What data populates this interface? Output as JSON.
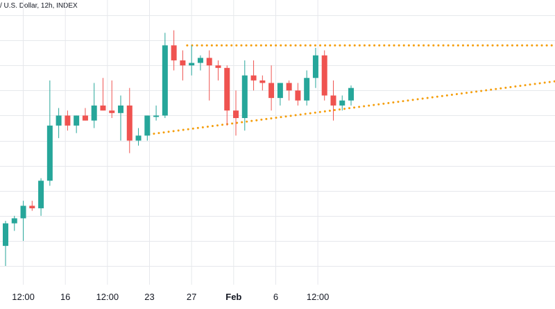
{
  "legend": {
    "text": "/ U.S. Dollar, 12h, INDEX"
  },
  "chart_data": {
    "type": "candlestick",
    "x_tick_labels": [
      {
        "label": "12:00",
        "slot": 2.0,
        "bold": false
      },
      {
        "label": "16",
        "slot": 6.75,
        "bold": false
      },
      {
        "label": "12:00",
        "slot": 11.5,
        "bold": false
      },
      {
        "label": "23",
        "slot": 16.25,
        "bold": false
      },
      {
        "label": "27",
        "slot": 21.0,
        "bold": false
      },
      {
        "label": "Feb",
        "slot": 25.75,
        "bold": true
      },
      {
        "label": "6",
        "slot": 30.5,
        "bold": false
      },
      {
        "label": "12:00",
        "slot": 35.25,
        "bold": false
      }
    ],
    "ylim": [
      0,
      100
    ],
    "grid": true,
    "candles": [
      {
        "open": 8,
        "high": 18,
        "low": 0,
        "close": 17
      },
      {
        "open": 17,
        "high": 20,
        "low": 14,
        "close": 19
      },
      {
        "open": 19,
        "high": 26,
        "low": 10,
        "close": 24
      },
      {
        "open": 24,
        "high": 26,
        "low": 22,
        "close": 23
      },
      {
        "open": 23,
        "high": 35,
        "low": 20,
        "close": 34
      },
      {
        "open": 34,
        "high": 74,
        "low": 32,
        "close": 56
      },
      {
        "open": 56,
        "high": 63,
        "low": 51,
        "close": 60
      },
      {
        "open": 60,
        "high": 62,
        "low": 54,
        "close": 56
      },
      {
        "open": 56,
        "high": 60,
        "low": 53,
        "close": 60
      },
      {
        "open": 60,
        "high": 63,
        "low": 58,
        "close": 58
      },
      {
        "open": 58,
        "high": 73,
        "low": 55,
        "close": 64
      },
      {
        "open": 64,
        "high": 75,
        "low": 62,
        "close": 62
      },
      {
        "open": 62,
        "high": 74,
        "low": 59,
        "close": 61
      },
      {
        "open": 61,
        "high": 68,
        "low": 50,
        "close": 64
      },
      {
        "open": 64,
        "high": 71,
        "low": 45,
        "close": 50
      },
      {
        "open": 50,
        "high": 55,
        "low": 48,
        "close": 52
      },
      {
        "open": 52,
        "high": 60,
        "low": 50,
        "close": 60
      },
      {
        "open": 60,
        "high": 64,
        "low": 58,
        "close": 60
      },
      {
        "open": 60,
        "high": 93,
        "low": 59,
        "close": 88
      },
      {
        "open": 88,
        "high": 94,
        "low": 78,
        "close": 82
      },
      {
        "open": 82,
        "high": 86,
        "low": 74,
        "close": 80
      },
      {
        "open": 80,
        "high": 88,
        "low": 76,
        "close": 81
      },
      {
        "open": 81,
        "high": 84,
        "low": 78,
        "close": 83
      },
      {
        "open": 83,
        "high": 86,
        "low": 66,
        "close": 80
      },
      {
        "open": 80,
        "high": 82,
        "low": 74,
        "close": 79
      },
      {
        "open": 79,
        "high": 80,
        "low": 56,
        "close": 62
      },
      {
        "open": 62,
        "high": 70,
        "low": 52,
        "close": 59
      },
      {
        "open": 59,
        "high": 82,
        "low": 54,
        "close": 76
      },
      {
        "open": 76,
        "high": 82,
        "low": 70,
        "close": 74
      },
      {
        "open": 74,
        "high": 76,
        "low": 70,
        "close": 73
      },
      {
        "open": 73,
        "high": 80,
        "low": 62,
        "close": 67
      },
      {
        "open": 67,
        "high": 73,
        "low": 64,
        "close": 73
      },
      {
        "open": 73,
        "high": 74,
        "low": 66,
        "close": 70
      },
      {
        "open": 70,
        "high": 73,
        "low": 64,
        "close": 66
      },
      {
        "open": 66,
        "high": 78,
        "low": 64,
        "close": 75
      },
      {
        "open": 75,
        "high": 87,
        "low": 71,
        "close": 84
      },
      {
        "open": 84,
        "high": 86,
        "low": 66,
        "close": 68
      },
      {
        "open": 68,
        "high": 74,
        "low": 58,
        "close": 64
      },
      {
        "open": 64,
        "high": 68,
        "low": 62,
        "close": 66
      },
      {
        "open": 66,
        "high": 72,
        "low": 64,
        "close": 71
      }
    ],
    "trend_lines": [
      {
        "name": "resistance",
        "style": "dotted",
        "color": "#f59e0b",
        "points": [
          {
            "slot": 20.5,
            "value": 88
          },
          {
            "slot": 66,
            "value": 88
          }
        ]
      },
      {
        "name": "support",
        "style": "dotted",
        "color": "#f59e0b",
        "points": [
          {
            "slot": 16.2,
            "value": 52.5
          },
          {
            "slot": 66,
            "value": 75.5
          }
        ]
      }
    ]
  },
  "colors": {
    "up": "#26a69a",
    "down": "#ef5350",
    "grid": "#e6e8ec",
    "trend": "#f59e0b",
    "axis_text": "#131722"
  }
}
